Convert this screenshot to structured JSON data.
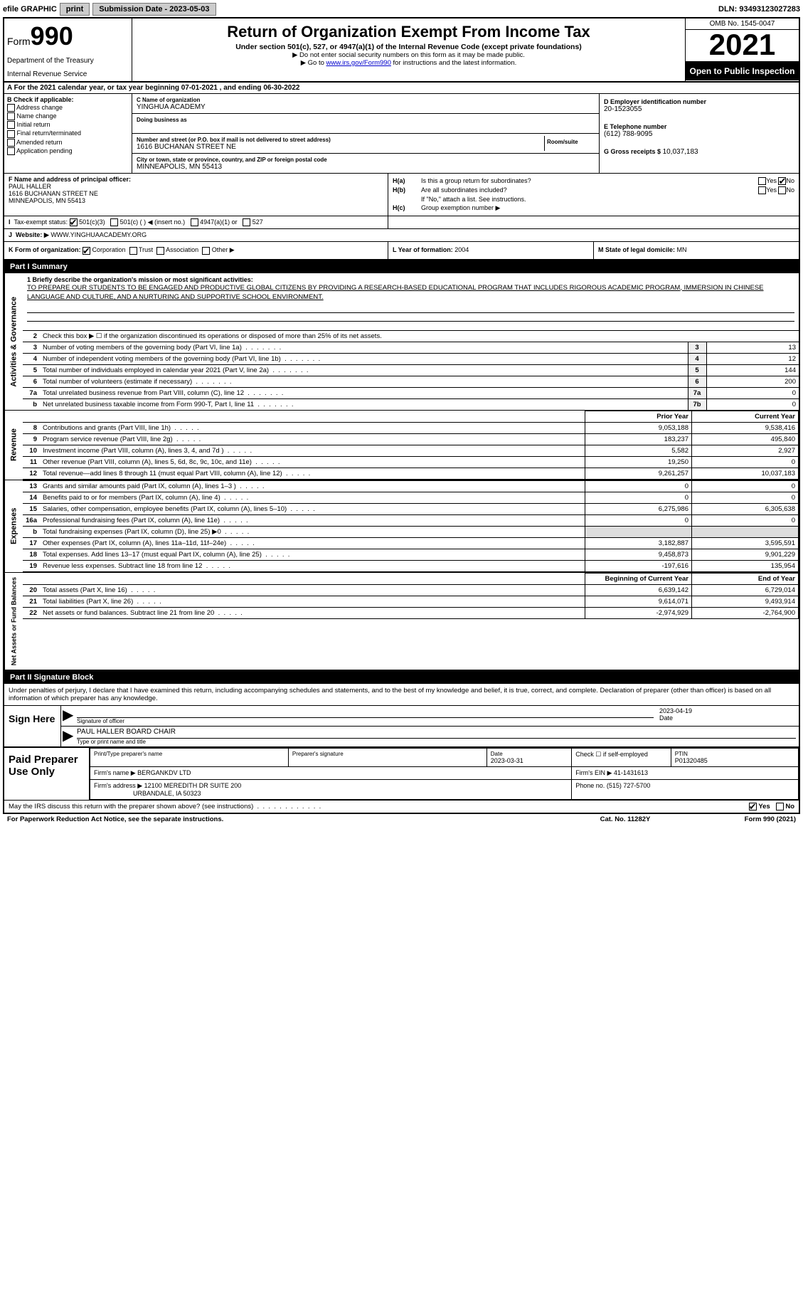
{
  "top": {
    "efile": "efile GRAPHIC",
    "print": "print",
    "submission": "Submission Date - 2023-05-03",
    "dln": "DLN: 93493123027283"
  },
  "header": {
    "form_word": "Form",
    "form_num": "990",
    "title": "Return of Organization Exempt From Income Tax",
    "subtitle": "Under section 501(c), 527, or 4947(a)(1) of the Internal Revenue Code (except private foundations)",
    "note1": "▶ Do not enter social security numbers on this form as it may be made public.",
    "note2_pre": "▶ Go to ",
    "note2_link": "www.irs.gov/Form990",
    "note2_post": " for instructions and the latest information.",
    "dept": "Department of the Treasury",
    "irs": "Internal Revenue Service",
    "omb": "OMB No. 1545-0047",
    "year": "2021",
    "open": "Open to Public Inspection"
  },
  "rowA": "A For the 2021 calendar year, or tax year beginning 07-01-2021   , and ending 06-30-2022",
  "boxB": {
    "label": "B Check if applicable:",
    "addr": "Address change",
    "name": "Name change",
    "initial": "Initial return",
    "final": "Final return/terminated",
    "amended": "Amended return",
    "app": "Application pending"
  },
  "boxC": {
    "name_lbl": "C Name of organization",
    "name": "YINGHUA ACADEMY",
    "dba_lbl": "Doing business as",
    "dba": "",
    "street_lbl": "Number and street (or P.O. box if mail is not delivered to street address)",
    "street": "1616 BUCHANAN STREET NE",
    "room_lbl": "Room/suite",
    "city_lbl": "City or town, state or province, country, and ZIP or foreign postal code",
    "city": "MINNEAPOLIS, MN  55413"
  },
  "boxD": {
    "ein_lbl": "D Employer identification number",
    "ein": "20-1523055",
    "tel_lbl": "E Telephone number",
    "tel": "(612) 788-9095",
    "gross_lbl": "G Gross receipts $",
    "gross": "10,037,183"
  },
  "boxF": {
    "lbl": "F Name and address of principal officer:",
    "name": "PAUL HALLER",
    "street": "1616 BUCHANAN STREET NE",
    "city": "MINNEAPOLIS, MN  55413"
  },
  "boxH": {
    "ha_lbl": "H(a)",
    "ha_text": "Is this a group return for subordinates?",
    "hb_lbl": "H(b)",
    "hb_text": "Are all subordinates included?",
    "hb_note": "If \"No,\" attach a list. See instructions.",
    "hc_lbl": "H(c)",
    "hc_text": "Group exemption number ▶",
    "yes": "Yes",
    "no": "No"
  },
  "boxI": {
    "lbl": "Tax-exempt status:",
    "o1": "501(c)(3)",
    "o2": "501(c) (   ) ◀ (insert no.)",
    "o3": "4947(a)(1) or",
    "o4": "527"
  },
  "boxJ": {
    "lbl": "Website: ▶",
    "val": "WWW.YINGHUAACADEMY.ORG"
  },
  "boxK": {
    "lbl": "K Form of organization:",
    "corp": "Corporation",
    "trust": "Trust",
    "assoc": "Association",
    "other": "Other ▶"
  },
  "boxL": {
    "l_lbl": "L Year of formation:",
    "l_val": "2004",
    "m_lbl": "M State of legal domicile:",
    "m_val": "MN"
  },
  "part1": {
    "header": "Part I     Summary",
    "vlabel_gov": "Activities & Governance",
    "vlabel_rev": "Revenue",
    "vlabel_exp": "Expenses",
    "vlabel_net": "Net Assets or Fund Balances",
    "line1_lbl": "1 Briefly describe the organization's mission or most significant activities:",
    "mission": "TO PREPARE OUR STUDENTS TO BE ENGAGED AND PRODUCTIVE GLOBAL CITIZENS BY PROVIDING A RESEARCH-BASED EDUCATIONAL PROGRAM THAT INCLUDES RIGOROUS ACADEMIC PROGRAM, IMMERSION IN CHINESE LANGUAGE AND CULTURE, AND A NURTURING AND SUPPORTIVE SCHOOL ENVIRONMENT.",
    "line2": "Check this box ▶ ☐ if the organization discontinued its operations or disposed of more than 25% of its net assets.",
    "rows_gov": [
      {
        "n": "3",
        "desc": "Number of voting members of the governing body (Part VI, line 1a)",
        "box": "3",
        "val": "13"
      },
      {
        "n": "4",
        "desc": "Number of independent voting members of the governing body (Part VI, line 1b)",
        "box": "4",
        "val": "12"
      },
      {
        "n": "5",
        "desc": "Total number of individuals employed in calendar year 2021 (Part V, line 2a)",
        "box": "5",
        "val": "144"
      },
      {
        "n": "6",
        "desc": "Total number of volunteers (estimate if necessary)",
        "box": "6",
        "val": "200"
      },
      {
        "n": "7a",
        "desc": "Total unrelated business revenue from Part VIII, column (C), line 12",
        "box": "7a",
        "val": "0"
      },
      {
        "n": "b",
        "desc": "Net unrelated business taxable income from Form 990-T, Part I, line 11",
        "box": "7b",
        "val": "0"
      }
    ],
    "prior_hdr": "Prior Year",
    "current_hdr": "Current Year",
    "rows_rev": [
      {
        "n": "8",
        "desc": "Contributions and grants (Part VIII, line 1h)",
        "prior": "9,053,188",
        "cur": "9,538,416"
      },
      {
        "n": "9",
        "desc": "Program service revenue (Part VIII, line 2g)",
        "prior": "183,237",
        "cur": "495,840"
      },
      {
        "n": "10",
        "desc": "Investment income (Part VIII, column (A), lines 3, 4, and 7d )",
        "prior": "5,582",
        "cur": "2,927"
      },
      {
        "n": "11",
        "desc": "Other revenue (Part VIII, column (A), lines 5, 6d, 8c, 9c, 10c, and 11e)",
        "prior": "19,250",
        "cur": "0"
      },
      {
        "n": "12",
        "desc": "Total revenue—add lines 8 through 11 (must equal Part VIII, column (A), line 12)",
        "prior": "9,261,257",
        "cur": "10,037,183"
      }
    ],
    "rows_exp": [
      {
        "n": "13",
        "desc": "Grants and similar amounts paid (Part IX, column (A), lines 1–3 )",
        "prior": "0",
        "cur": "0"
      },
      {
        "n": "14",
        "desc": "Benefits paid to or for members (Part IX, column (A), line 4)",
        "prior": "0",
        "cur": "0"
      },
      {
        "n": "15",
        "desc": "Salaries, other compensation, employee benefits (Part IX, column (A), lines 5–10)",
        "prior": "6,275,986",
        "cur": "6,305,638"
      },
      {
        "n": "16a",
        "desc": "Professional fundraising fees (Part IX, column (A), line 11e)",
        "prior": "0",
        "cur": "0"
      },
      {
        "n": "b",
        "desc": "Total fundraising expenses (Part IX, column (D), line 25) ▶0",
        "prior": "",
        "cur": "",
        "gray": true
      },
      {
        "n": "17",
        "desc": "Other expenses (Part IX, column (A), lines 11a–11d, 11f–24e)",
        "prior": "3,182,887",
        "cur": "3,595,591"
      },
      {
        "n": "18",
        "desc": "Total expenses. Add lines 13–17 (must equal Part IX, column (A), line 25)",
        "prior": "9,458,873",
        "cur": "9,901,229"
      },
      {
        "n": "19",
        "desc": "Revenue less expenses. Subtract line 18 from line 12",
        "prior": "-197,616",
        "cur": "135,954"
      }
    ],
    "begin_hdr": "Beginning of Current Year",
    "end_hdr": "End of Year",
    "rows_net": [
      {
        "n": "20",
        "desc": "Total assets (Part X, line 16)",
        "prior": "6,639,142",
        "cur": "6,729,014"
      },
      {
        "n": "21",
        "desc": "Total liabilities (Part X, line 26)",
        "prior": "9,614,071",
        "cur": "9,493,914"
      },
      {
        "n": "22",
        "desc": "Net assets or fund balances. Subtract line 21 from line 20",
        "prior": "-2,974,929",
        "cur": "-2,764,900"
      }
    ]
  },
  "part2": {
    "header": "Part II    Signature Block",
    "text": "Under penalties of perjury, I declare that I have examined this return, including accompanying schedules and statements, and to the best of my knowledge and belief, it is true, correct, and complete. Declaration of preparer (other than officer) is based on all information of which preparer has any knowledge.",
    "sign_here": "Sign Here",
    "sig_officer": "Signature of officer",
    "sig_date": "2023-04-19",
    "date_lbl": "Date",
    "name_title": "PAUL HALLER  BOARD CHAIR",
    "name_title_lbl": "Type or print name and title",
    "paid_prep": "Paid Preparer Use Only",
    "prep_name_lbl": "Print/Type preparer's name",
    "prep_name": "",
    "prep_sig_lbl": "Preparer's signature",
    "prep_date_lbl": "Date",
    "prep_date": "2023-03-31",
    "check_self": "Check ☐ if self-employed",
    "ptin_lbl": "PTIN",
    "ptin": "P01320485",
    "firm_name_lbl": "Firm's name    ▶",
    "firm_name": "BERGANKDV LTD",
    "firm_ein_lbl": "Firm's EIN ▶",
    "firm_ein": "41-1431613",
    "firm_addr_lbl": "Firm's address ▶",
    "firm_addr1": "12100 MEREDITH DR SUITE 200",
    "firm_addr2": "URBANDALE, IA  50323",
    "phone_lbl": "Phone no.",
    "phone": "(515) 727-5700",
    "discuss": "May the IRS discuss this return with the preparer shown above? (see instructions)",
    "yes": "Yes",
    "no": "No"
  },
  "footer": {
    "paperwork": "For Paperwork Reduction Act Notice, see the separate instructions.",
    "cat": "Cat. No. 11282Y",
    "form": "Form 990 (2021)"
  }
}
